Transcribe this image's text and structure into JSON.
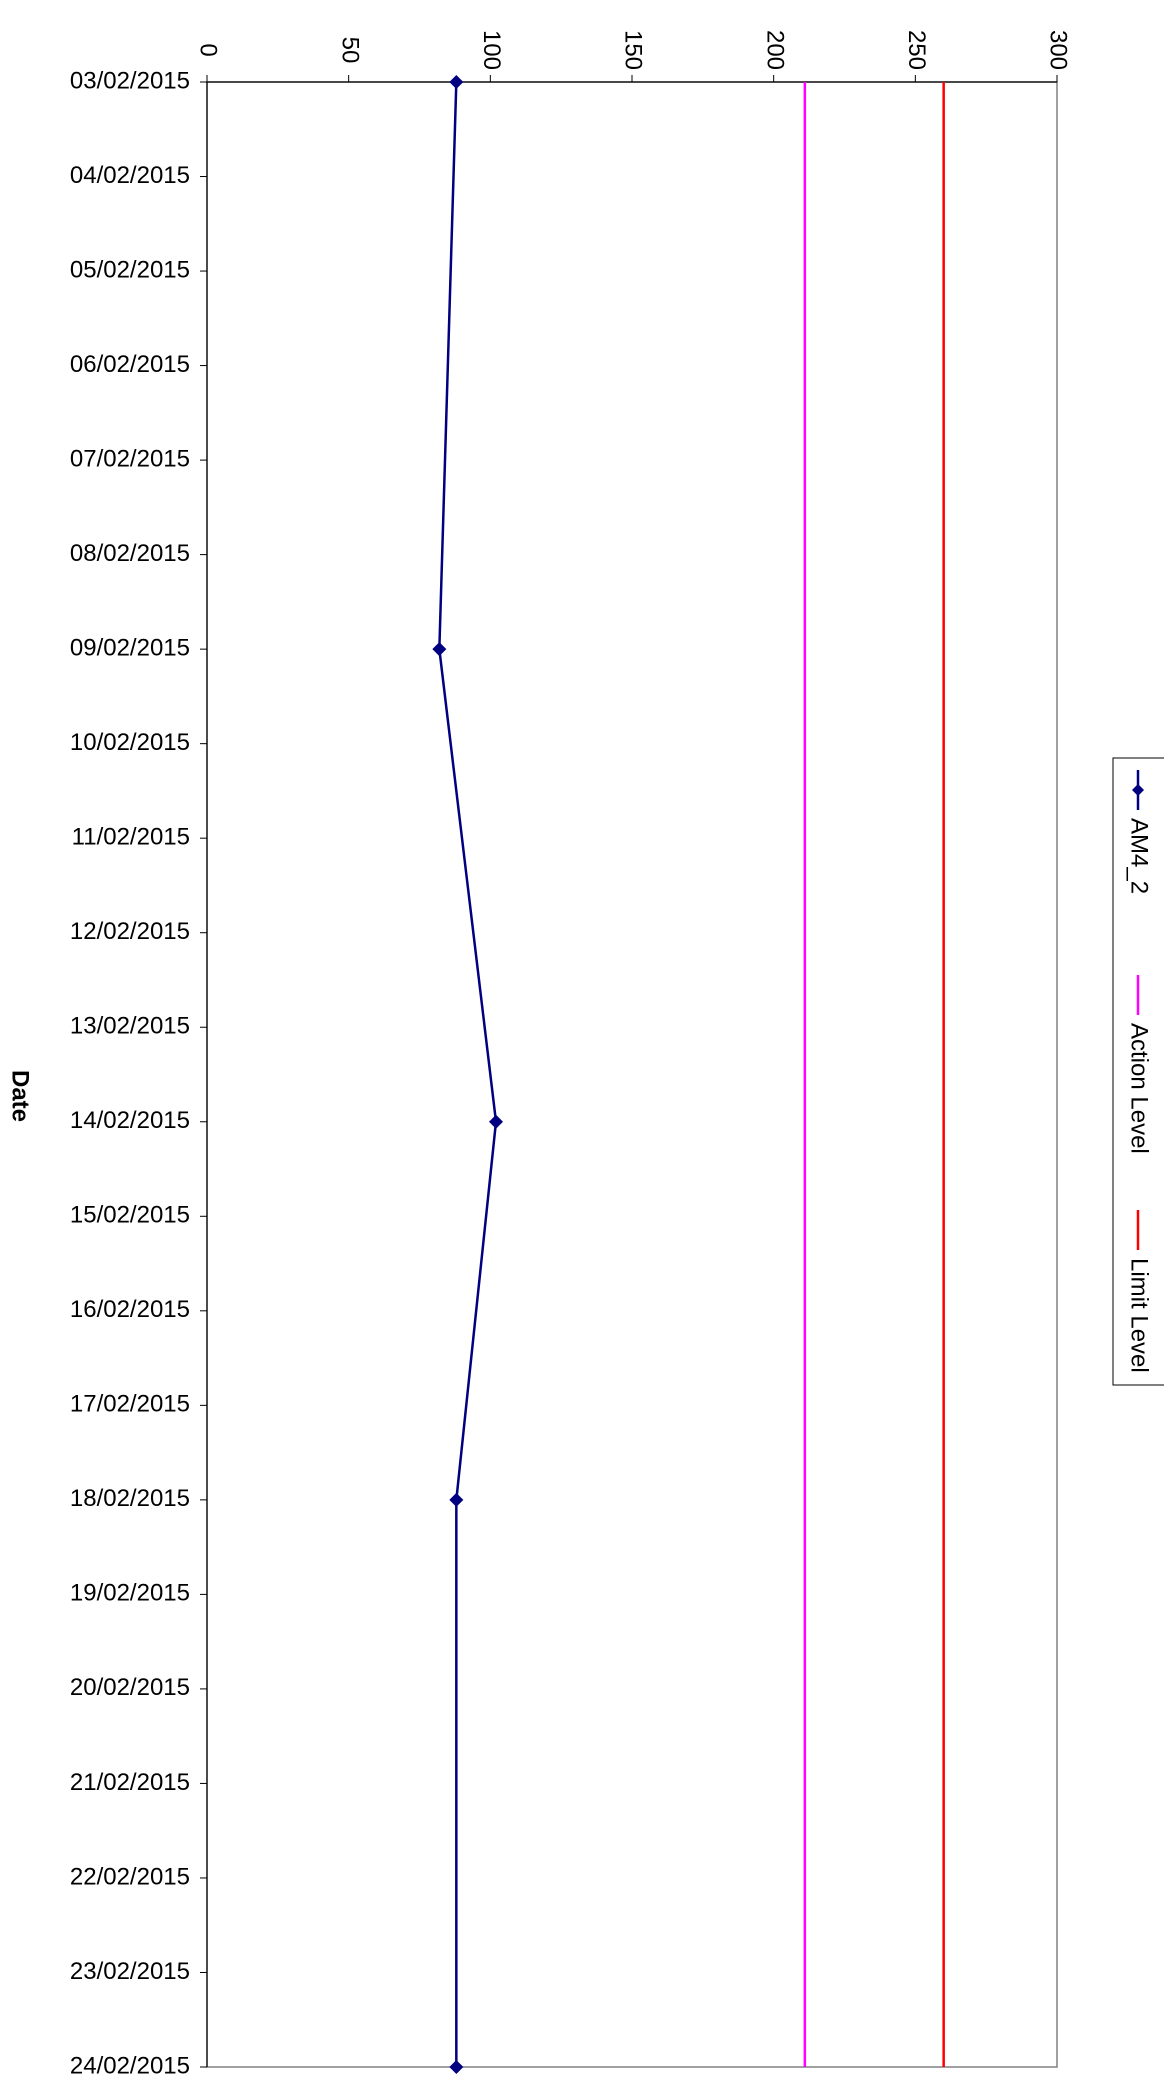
{
  "chart_data": {
    "type": "line",
    "orientation": "rotated-90-clockwise",
    "title": "",
    "xlabel": "Date",
    "ylabel": "",
    "x": [
      "03/02/2015",
      "04/02/2015",
      "05/02/2015",
      "06/02/2015",
      "07/02/2015",
      "08/02/2015",
      "09/02/2015",
      "10/02/2015",
      "11/02/2015",
      "12/02/2015",
      "13/02/2015",
      "14/02/2015",
      "15/02/2015",
      "16/02/2015",
      "17/02/2015",
      "18/02/2015",
      "19/02/2015",
      "20/02/2015",
      "21/02/2015",
      "22/02/2015",
      "23/02/2015",
      "24/02/2015"
    ],
    "ylim": [
      0,
      300
    ],
    "y_ticks": [
      0,
      50,
      100,
      150,
      200,
      250,
      300
    ],
    "grid": false,
    "legend_position": "right",
    "series": [
      {
        "name": "AM4_2",
        "color": "#000080",
        "marker": "diamond",
        "points": [
          {
            "x": "03/02/2015",
            "y": 88
          },
          {
            "x": "09/02/2015",
            "y": 82
          },
          {
            "x": "14/02/2015",
            "y": 102
          },
          {
            "x": "18/02/2015",
            "y": 88
          },
          {
            "x": "24/02/2015",
            "y": 88
          }
        ]
      },
      {
        "name": "Action Level",
        "color": "#ff00ff",
        "marker": "none",
        "constant": 211
      },
      {
        "name": "Limit Level",
        "color": "#ff0000",
        "marker": "none",
        "constant": 260
      }
    ]
  }
}
